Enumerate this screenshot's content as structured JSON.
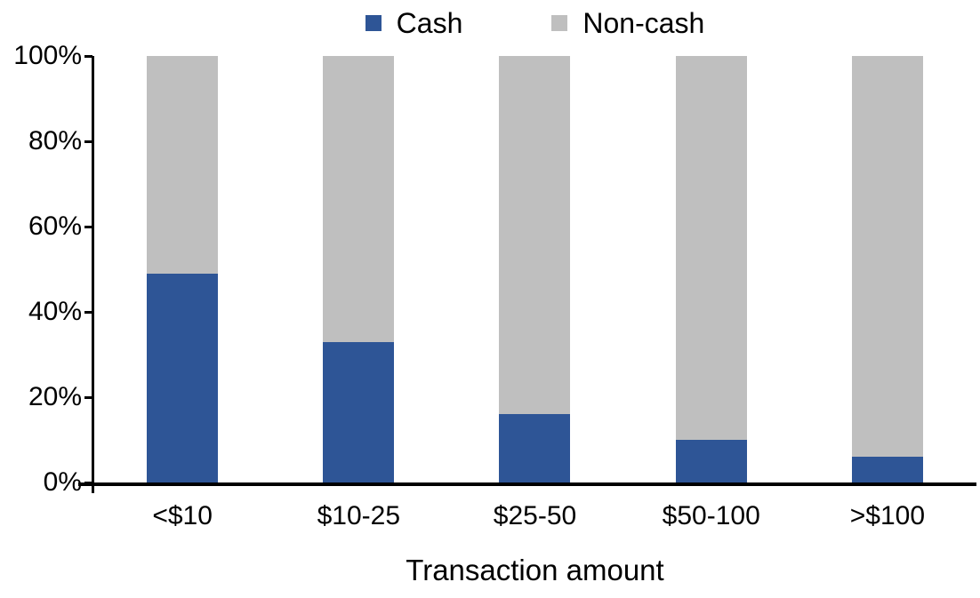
{
  "chart_data": {
    "type": "bar",
    "stacked": true,
    "stacked_percent": true,
    "title": "",
    "xlabel": "Transaction amount",
    "ylabel": "",
    "categories": [
      "<$10",
      "$10-25",
      "$25-50",
      "$50-100",
      ">$100"
    ],
    "series": [
      {
        "name": "Cash",
        "color": "#2E5596",
        "values": [
          49,
          33,
          16,
          10,
          6
        ]
      },
      {
        "name": "Non-cash",
        "color": "#BFBFBF",
        "values": [
          51,
          67,
          84,
          90,
          94
        ]
      }
    ],
    "ylim": [
      0,
      100
    ],
    "yticks": [
      0,
      20,
      40,
      60,
      80,
      100
    ],
    "ytick_suffix": "%",
    "legend_position": "top-center",
    "grid": false,
    "axis_color": "#000000",
    "background_color": "#ffffff"
  }
}
